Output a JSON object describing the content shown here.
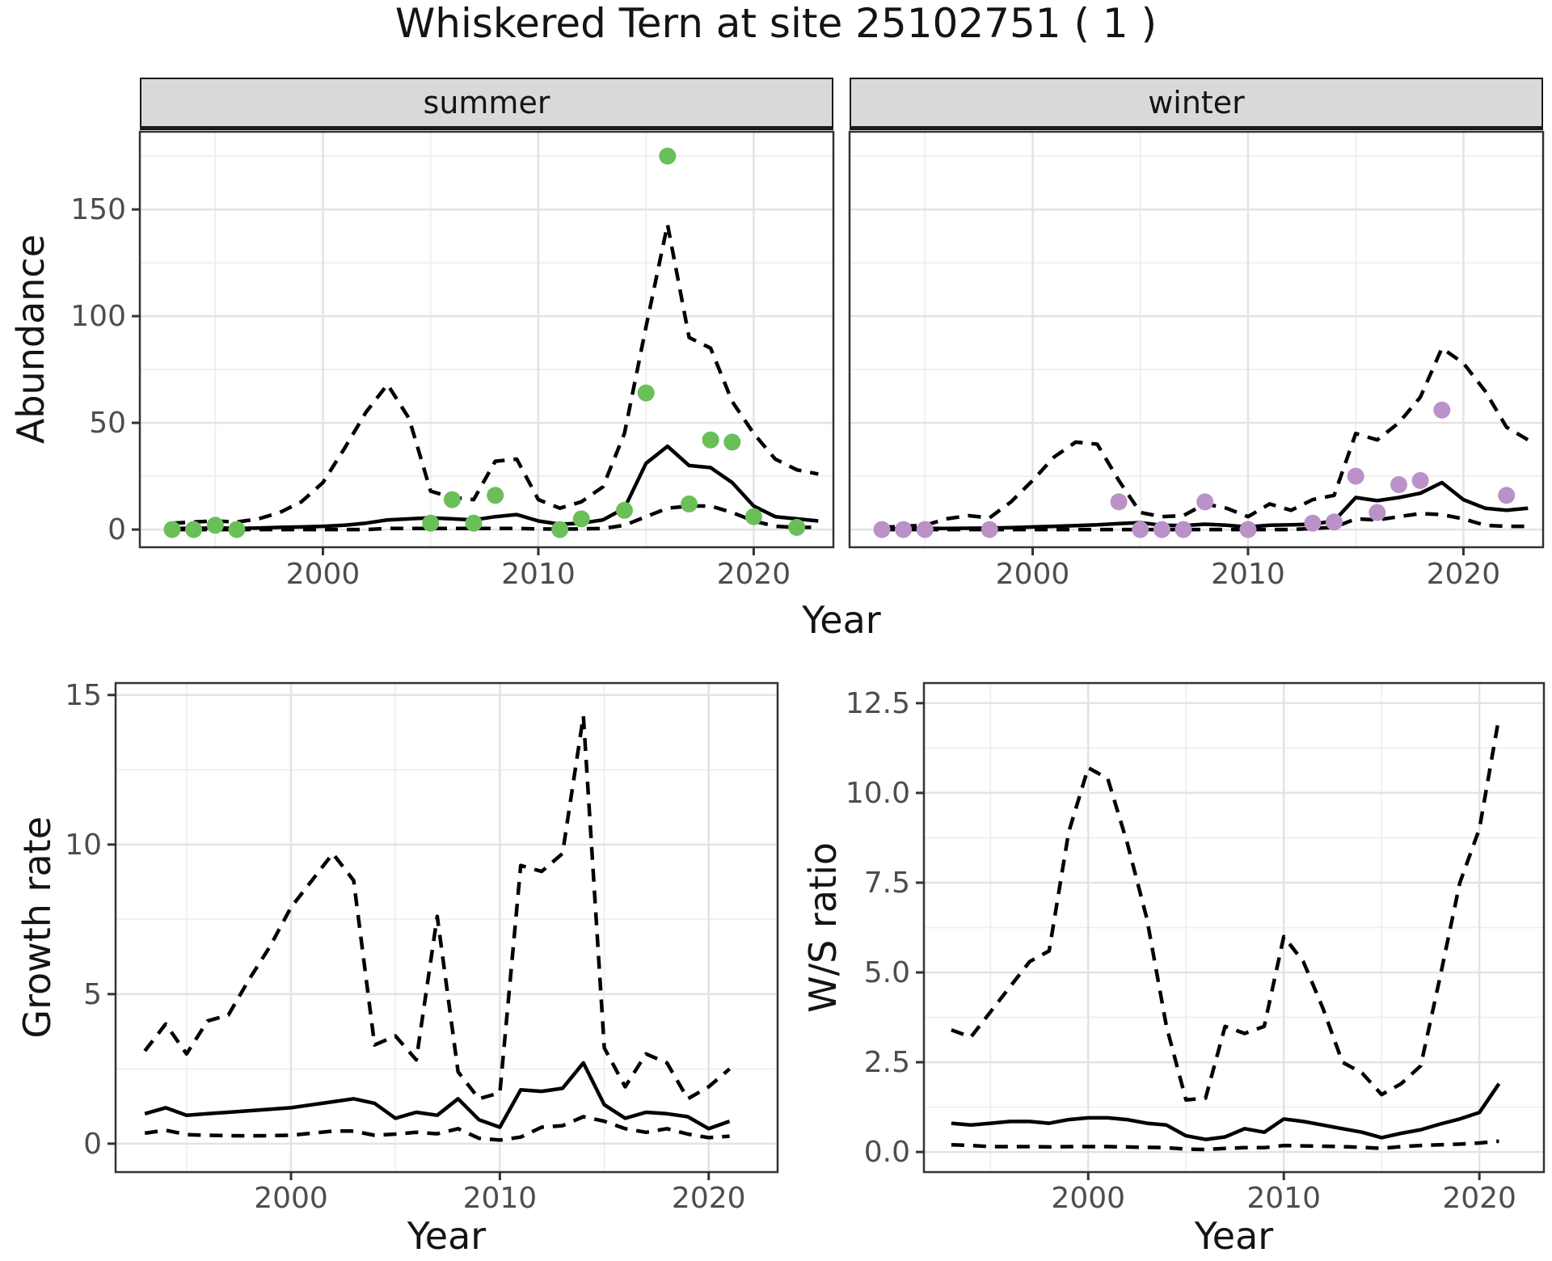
{
  "title": "Whiskered Tern at site 25102751 ( 1 )",
  "top_row": {
    "ylabel": "Abundance",
    "xlabel": "Year",
    "facets": [
      "summer",
      "winter"
    ]
  },
  "bottom_left": {
    "ylabel": "Growth rate",
    "xlabel": "Year"
  },
  "bottom_right": {
    "ylabel": "W/S ratio",
    "xlabel": "Year"
  },
  "colors": {
    "summer_points": "#6abf59",
    "winter_points": "#ba91c8",
    "line": "#000000",
    "strip_bg": "#d9d9d9",
    "grid_major": "#e3e3e3",
    "grid_minor": "#efefef",
    "panel_border": "#333333",
    "tick_text": "#4d4d4d"
  },
  "chart_data": [
    {
      "id": "abundance-summer",
      "type": "line",
      "facet": "summer",
      "xlabel": "Year",
      "ylabel": "Abundance",
      "xlim": [
        1991.5,
        2023.7
      ],
      "ylim": [
        -8.3,
        186.4
      ],
      "xticks": [
        2000,
        2010,
        2020
      ],
      "xtick_labels": [
        "2000",
        "2010",
        "2020"
      ],
      "xticks_minor": [
        1995,
        2005,
        2015
      ],
      "yticks": [
        0,
        50,
        100,
        150
      ],
      "ytick_labels": [
        "0",
        "50",
        "100",
        "150"
      ],
      "yticks_minor": [
        25,
        75,
        125,
        175
      ],
      "grid": true,
      "legend": "none",
      "x": [
        1993,
        1994,
        1995,
        1996,
        1997,
        1998,
        1999,
        2000,
        2001,
        2002,
        2003,
        2004,
        2005,
        2006,
        2007,
        2008,
        2009,
        2010,
        2011,
        2012,
        2013,
        2014,
        2015,
        2016,
        2017,
        2018,
        2019,
        2020,
        2021,
        2022,
        2023
      ],
      "series": [
        {
          "name": "upper_95ci",
          "style": "dashed",
          "values": [
            3,
            3.5,
            4,
            3.5,
            5,
            8,
            13,
            22,
            38,
            55,
            68,
            52,
            18,
            15,
            14,
            32,
            33,
            14,
            10,
            13,
            20,
            45,
            95,
            143,
            90,
            85,
            60,
            45,
            33,
            28,
            26
          ]
        },
        {
          "name": "estimate",
          "style": "solid",
          "values": [
            0.5,
            0.5,
            0.8,
            0.5,
            0.7,
            1,
            1.2,
            1.5,
            2,
            3,
            4.5,
            5,
            5.5,
            5,
            4.5,
            6,
            7,
            4,
            2.5,
            3,
            4.5,
            10,
            31,
            39,
            30,
            29,
            22,
            11,
            6,
            5,
            4
          ]
        },
        {
          "name": "lower_95ci",
          "style": "dashed",
          "values": [
            0,
            0,
            0,
            0,
            0,
            0,
            0,
            0,
            0,
            0,
            0.5,
            0.5,
            0.5,
            0.5,
            0.5,
            0.5,
            0.5,
            0.3,
            0.2,
            0.3,
            0.5,
            2,
            6,
            10,
            11,
            11,
            8,
            4,
            1.5,
            1,
            1
          ]
        }
      ],
      "points": {
        "name": "observed_counts",
        "color": "#6abf59",
        "x": [
          1993,
          1994,
          1995,
          1996,
          2005,
          2006,
          2007,
          2008,
          2011,
          2012,
          2014,
          2015,
          2016,
          2017,
          2018,
          2019,
          2020,
          2022
        ],
        "y": [
          0,
          0,
          2,
          0,
          3,
          14,
          3,
          16,
          0,
          5,
          9,
          64,
          175,
          12,
          42,
          41,
          6,
          1
        ]
      }
    },
    {
      "id": "abundance-winter",
      "type": "line",
      "facet": "winter",
      "xlabel": "Year",
      "ylabel": "Abundance",
      "xlim": [
        1991.5,
        2023.7
      ],
      "ylim": [
        -8.3,
        186.4
      ],
      "xticks": [
        2000,
        2010,
        2020
      ],
      "xtick_labels": [
        "2000",
        "2010",
        "2020"
      ],
      "xticks_minor": [
        1995,
        2005,
        2015
      ],
      "yticks": [
        0,
        50,
        100,
        150
      ],
      "ytick_labels": [
        "0",
        "50",
        "100",
        "150"
      ],
      "yticks_minor": [
        25,
        75,
        125,
        175
      ],
      "grid": true,
      "legend": "none",
      "x": [
        1993,
        1994,
        1995,
        1996,
        1997,
        1998,
        1999,
        2000,
        2001,
        2002,
        2003,
        2004,
        2005,
        2006,
        2007,
        2008,
        2009,
        2010,
        2011,
        2012,
        2013,
        2014,
        2015,
        2016,
        2017,
        2018,
        2019,
        2020,
        2021,
        2022,
        2023
      ],
      "series": [
        {
          "name": "upper_95ci",
          "style": "dashed",
          "values": [
            1,
            1.5,
            2,
            5,
            6.5,
            5.5,
            13,
            23,
            34,
            41,
            40,
            23,
            8,
            6,
            6.5,
            12,
            10,
            6,
            12,
            9,
            14,
            16,
            45,
            42,
            50,
            62,
            85,
            78,
            65,
            48,
            42
          ]
        },
        {
          "name": "estimate",
          "style": "solid",
          "values": [
            0.4,
            0.4,
            0.5,
            0.5,
            0.6,
            0.7,
            0.9,
            1.2,
            1.5,
            1.8,
            2.2,
            2.8,
            3.2,
            2,
            1.8,
            2.5,
            2,
            1.2,
            2,
            2.2,
            2.5,
            4,
            15,
            13.5,
            15,
            17,
            22,
            14,
            10,
            9,
            10
          ]
        },
        {
          "name": "lower_95ci",
          "style": "dashed",
          "values": [
            0,
            0,
            0,
            0,
            0,
            0,
            0,
            0,
            0,
            0,
            0,
            0,
            0,
            0,
            0,
            0,
            0,
            0,
            0,
            0,
            0.5,
            1,
            5,
            4.5,
            6,
            7.5,
            7,
            5,
            2,
            1.5,
            1.5
          ]
        }
      ],
      "points": {
        "name": "observed_counts",
        "color": "#ba91c8",
        "x": [
          1993,
          1994,
          1995,
          1998,
          2004,
          2005,
          2006,
          2007,
          2008,
          2010,
          2013,
          2014,
          2015,
          2016,
          2017,
          2018,
          2019,
          2022
        ],
        "y": [
          0,
          0,
          0,
          0,
          13,
          0,
          0,
          0,
          13,
          0,
          3,
          3.5,
          25,
          8,
          21,
          23,
          56,
          16
        ]
      }
    },
    {
      "id": "growth-rate",
      "type": "line",
      "facet": null,
      "xlabel": "Year",
      "ylabel": "Growth rate",
      "xlim": [
        1991.6,
        2023.3
      ],
      "ylim": [
        -0.95,
        15.4
      ],
      "xticks": [
        2000,
        2010,
        2020
      ],
      "xtick_labels": [
        "2000",
        "2010",
        "2020"
      ],
      "xticks_minor": [
        1995,
        2005,
        2015
      ],
      "yticks": [
        0,
        5,
        10,
        15
      ],
      "ytick_labels": [
        "0",
        "5",
        "10",
        "15"
      ],
      "yticks_minor": [
        2.5,
        7.5,
        12.5
      ],
      "grid": true,
      "legend": "none",
      "x": [
        1993,
        1994,
        1995,
        1996,
        1997,
        1998,
        1999,
        2000,
        2001,
        2002,
        2003,
        2004,
        2005,
        2006,
        2007,
        2008,
        2009,
        2010,
        2011,
        2012,
        2013,
        2014,
        2015,
        2016,
        2017,
        2018,
        2019,
        2020,
        2021
      ],
      "series": [
        {
          "name": "upper_95ci",
          "style": "dashed",
          "values": [
            3.1,
            4,
            3,
            4.1,
            4.3,
            5.5,
            6.6,
            7.9,
            8.8,
            9.7,
            8.8,
            3.3,
            3.6,
            2.8,
            7.6,
            2.4,
            1.5,
            1.7,
            9.3,
            9.1,
            9.7,
            14.3,
            3.2,
            1.9,
            3,
            2.7,
            1.5,
            1.9,
            2.5
          ]
        },
        {
          "name": "estimate",
          "style": "solid",
          "values": [
            1,
            1.2,
            0.95,
            1,
            1.05,
            1.1,
            1.15,
            1.2,
            1.3,
            1.4,
            1.5,
            1.35,
            0.85,
            1.05,
            0.95,
            1.5,
            0.8,
            0.55,
            1.8,
            1.75,
            1.85,
            2.7,
            1.3,
            0.85,
            1.05,
            1,
            0.9,
            0.5,
            0.75
          ]
        },
        {
          "name": "lower_95ci",
          "style": "dashed",
          "values": [
            0.35,
            0.45,
            0.3,
            0.28,
            0.27,
            0.26,
            0.27,
            0.28,
            0.35,
            0.42,
            0.42,
            0.28,
            0.32,
            0.38,
            0.33,
            0.5,
            0.18,
            0.12,
            0.22,
            0.55,
            0.6,
            0.9,
            0.75,
            0.5,
            0.38,
            0.5,
            0.32,
            0.2,
            0.25
          ]
        }
      ],
      "points": null
    },
    {
      "id": "ws-ratio",
      "type": "line",
      "facet": null,
      "xlabel": "Year",
      "ylabel": "W/S ratio",
      "xlim": [
        1991.6,
        2023.3
      ],
      "ylim": [
        -0.56,
        13.06
      ],
      "xticks": [
        2000,
        2010,
        2020
      ],
      "xtick_labels": [
        "2000",
        "2010",
        "2020"
      ],
      "xticks_minor": [
        1995,
        2005,
        2015
      ],
      "yticks": [
        0,
        2.5,
        5,
        7.5,
        10,
        12.5
      ],
      "ytick_labels": [
        "0.0",
        "2.5",
        "5.0",
        "7.5",
        "10.0",
        "12.5"
      ],
      "yticks_minor": [
        1.25,
        3.75,
        6.25,
        8.75,
        11.25
      ],
      "grid": true,
      "legend": "none",
      "x": [
        1993,
        1994,
        1995,
        1996,
        1997,
        1998,
        1999,
        2000,
        2001,
        2002,
        2003,
        2004,
        2005,
        2006,
        2007,
        2008,
        2009,
        2010,
        2011,
        2012,
        2013,
        2014,
        2015,
        2016,
        2017,
        2018,
        2019,
        2020,
        2021
      ],
      "series": [
        {
          "name": "upper_95ci",
          "style": "dashed",
          "values": [
            3.4,
            3.2,
            3.9,
            4.6,
            5.3,
            5.6,
            8.9,
            10.7,
            10.4,
            8.6,
            6.5,
            3.5,
            1.45,
            1.5,
            3.5,
            3.3,
            3.5,
            6,
            5.3,
            4,
            2.5,
            2.2,
            1.6,
            1.9,
            2.4,
            4.9,
            7.5,
            9,
            12.1
          ]
        },
        {
          "name": "estimate",
          "style": "solid",
          "values": [
            0.8,
            0.75,
            0.8,
            0.85,
            0.85,
            0.8,
            0.9,
            0.95,
            0.95,
            0.9,
            0.8,
            0.75,
            0.45,
            0.35,
            0.42,
            0.65,
            0.55,
            0.92,
            0.85,
            0.75,
            0.65,
            0.55,
            0.4,
            0.52,
            0.62,
            0.78,
            0.92,
            1.1,
            1.9
          ]
        },
        {
          "name": "lower_95ci",
          "style": "dashed",
          "values": [
            0.2,
            0.18,
            0.15,
            0.15,
            0.15,
            0.14,
            0.15,
            0.15,
            0.15,
            0.14,
            0.13,
            0.12,
            0.08,
            0.07,
            0.1,
            0.12,
            0.12,
            0.18,
            0.17,
            0.16,
            0.15,
            0.13,
            0.1,
            0.15,
            0.18,
            0.2,
            0.22,
            0.25,
            0.3
          ]
        }
      ],
      "points": null
    }
  ]
}
